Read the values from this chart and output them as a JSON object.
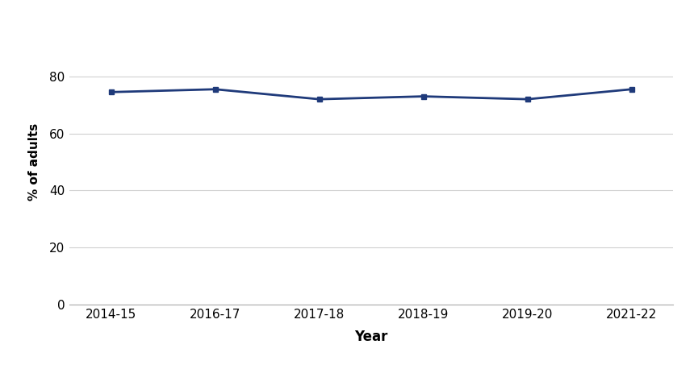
{
  "x_labels": [
    "2014-15",
    "2016-17",
    "2017-18",
    "2018-19",
    "2019-20",
    "2021-22"
  ],
  "y_values": [
    74.5,
    75.5,
    72.0,
    73.0,
    72.0,
    75.5
  ],
  "line_color": "#1F3A7A",
  "marker": "s",
  "marker_size": 4,
  "line_width": 2.0,
  "ylabel": "% of adults",
  "xlabel": "Year",
  "ylim": [
    0,
    100
  ],
  "yticks": [
    0,
    20,
    40,
    60,
    80
  ],
  "background_color": "#ffffff",
  "grid_color": "#d0d0d0",
  "axis_fontsize": 11,
  "legend_fontsize": 12,
  "xlabel_fontsize": 12,
  "ylabel_fontsize": 11
}
